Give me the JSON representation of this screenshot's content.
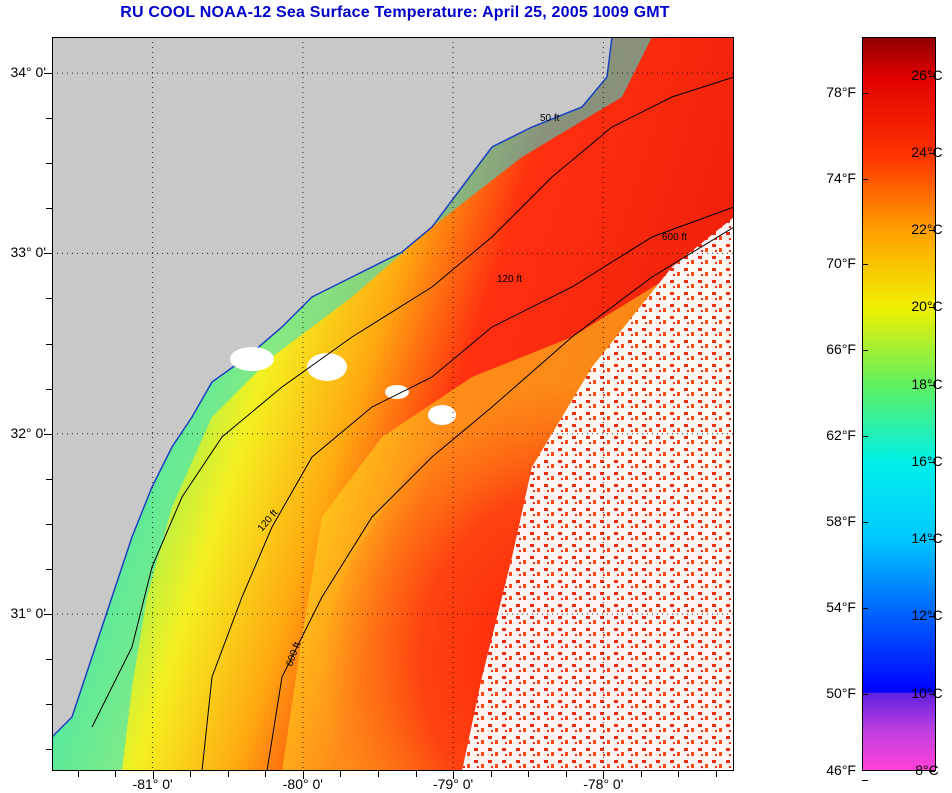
{
  "title": "RU COOL  NOAA-12  Sea Surface Temperature:  April 25, 2005 1009 GMT",
  "map": {
    "lat_range": [
      30.13,
      34.2
    ],
    "lon_range": [
      -81.67,
      -77.13
    ],
    "lat_ticks": [
      {
        "value": 34,
        "label": "34° 0'"
      },
      {
        "value": 33,
        "label": "33° 0'"
      },
      {
        "value": 32,
        "label": "32° 0'"
      },
      {
        "value": 31,
        "label": "31° 0'"
      }
    ],
    "lon_ticks": [
      {
        "value": -81,
        "label": "-81° 0'"
      },
      {
        "value": -80,
        "label": "-80° 0'"
      },
      {
        "value": -79,
        "label": "-79° 0'"
      },
      {
        "value": -78,
        "label": "-78° 0'"
      }
    ],
    "contour_labels": [
      "50 ft",
      "120 ft",
      "600 ft"
    ],
    "colors": {
      "land": "#c8c8c8",
      "cloud": "#ffffff",
      "contour": "#000000"
    }
  },
  "colorbar": {
    "range_c": [
      8,
      27
    ],
    "celsius_ticks": [
      {
        "value": 26,
        "label": "26°C"
      },
      {
        "value": 24,
        "label": "24°C"
      },
      {
        "value": 22,
        "label": "22°C"
      },
      {
        "value": 20,
        "label": "20°C"
      },
      {
        "value": 18,
        "label": "18°C"
      },
      {
        "value": 16,
        "label": "16°C"
      },
      {
        "value": 14,
        "label": "14°C"
      },
      {
        "value": 12,
        "label": "12°C"
      },
      {
        "value": 10,
        "label": "10°C"
      },
      {
        "value": 8,
        "label": "8°C"
      }
    ],
    "fahrenheit_ticks": [
      {
        "value": 78,
        "label": "78°F"
      },
      {
        "value": 74,
        "label": "74°F"
      },
      {
        "value": 70,
        "label": "70°F"
      },
      {
        "value": 66,
        "label": "66°F"
      },
      {
        "value": 62,
        "label": "62°F"
      },
      {
        "value": 58,
        "label": "58°F"
      },
      {
        "value": 54,
        "label": "54°F"
      },
      {
        "value": 50,
        "label": "50°F"
      },
      {
        "value": 46,
        "label": "46°F"
      }
    ]
  }
}
